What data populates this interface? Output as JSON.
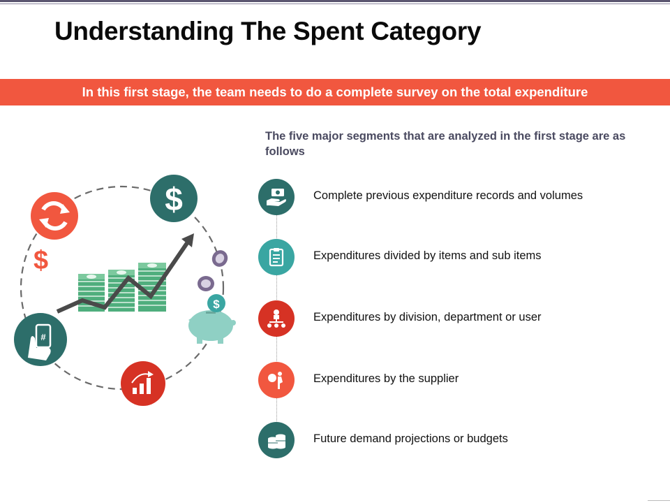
{
  "slide": {
    "title": "Understanding The Spent Category",
    "banner": "In this first stage, the team needs to do a complete survey on the total expenditure",
    "intro": "The five major segments that are analyzed in the first stage are as follows"
  },
  "segments": [
    {
      "label": "Complete previous expenditure records and volumes",
      "icon": "money-in-hand-icon",
      "color": "#2d6e6a"
    },
    {
      "label": "Expenditures divided by items and sub items",
      "icon": "clipboard-checklist-icon",
      "color": "#3aa6a2"
    },
    {
      "label": "Expenditures by division, department or user",
      "icon": "org-chart-icon",
      "color": "#d63224"
    },
    {
      "label": "Expenditures by the supplier",
      "icon": "supplier-carrying-icon",
      "color": "#f1573f"
    },
    {
      "label": "Future demand projections or budgets",
      "icon": "coin-stacks-icon",
      "color": "#2d6e6a"
    }
  ],
  "colors": {
    "accent": "#f1573f",
    "teal_dark": "#2d6e6a",
    "teal_light": "#3aa6a2",
    "red": "#d63224",
    "intro_text": "#4a4a60"
  }
}
